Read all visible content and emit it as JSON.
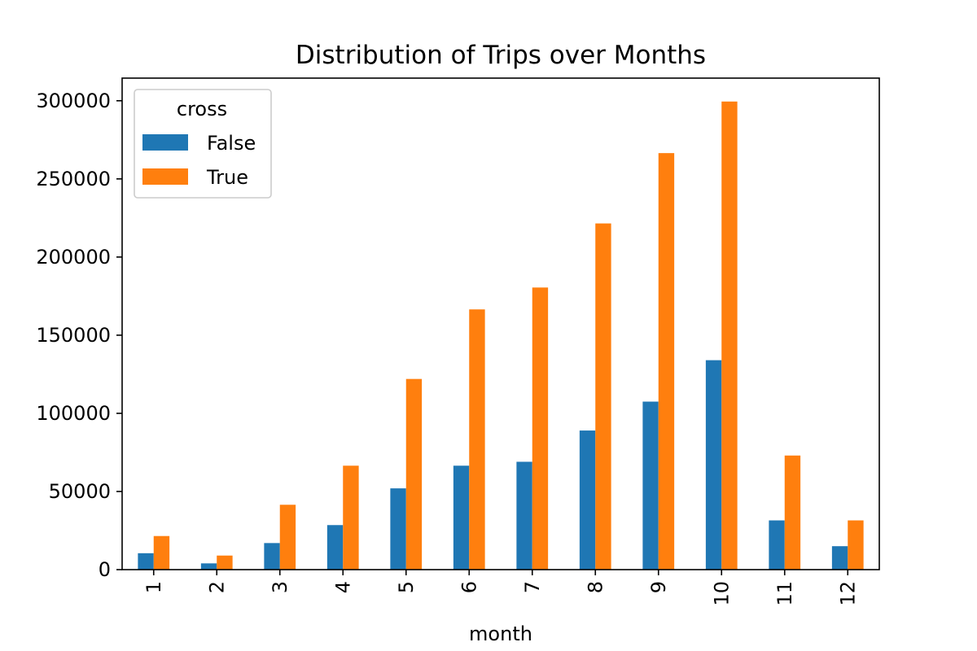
{
  "chart_data": {
    "type": "bar",
    "title": "Distribution of Trips over Months",
    "xlabel": "month",
    "ylabel": "",
    "categories": [
      "1",
      "2",
      "3",
      "4",
      "5",
      "6",
      "7",
      "8",
      "9",
      "10",
      "11",
      "12"
    ],
    "series": [
      {
        "name": "False",
        "color": "#1f77b4",
        "values": [
          10500,
          4000,
          17000,
          28500,
          52000,
          66500,
          69000,
          89000,
          107500,
          134000,
          31500,
          15000
        ]
      },
      {
        "name": "True",
        "color": "#ff7f0e",
        "values": [
          21500,
          9000,
          41500,
          66500,
          122000,
          166500,
          180500,
          221500,
          266500,
          299500,
          73000,
          31500
        ]
      }
    ],
    "ylim": [
      0,
      314475
    ],
    "yticks": [
      "0",
      "50000",
      "100000",
      "150000",
      "200000",
      "250000",
      "300000"
    ],
    "legend": {
      "title": "cross",
      "placement": "top-left"
    },
    "grid": false
  }
}
